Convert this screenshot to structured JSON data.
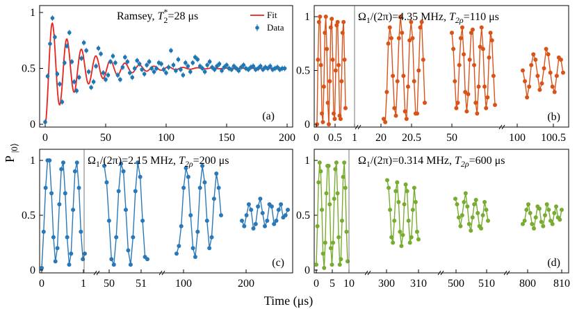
{
  "figure": {
    "ylabel": "P|0⟩",
    "xlabel": "Time (μs)"
  },
  "colors": {
    "ramsey": "#1f77b4",
    "fit": "#e8221a",
    "b": "#d95319",
    "c": "#2a78b8",
    "d": "#77ac30"
  },
  "chart_data": [
    {
      "id": "a",
      "type": "scatter",
      "title_text": "Ramsey, ",
      "title_param": "T",
      "title_sup": "*",
      "title_sub": "2",
      "title_value": "=28 μs",
      "panel_label": "(a)",
      "xlim": [
        0,
        200
      ],
      "ylim": [
        0,
        1
      ],
      "x_ticks": [
        "0",
        "50",
        "100",
        "150",
        "200"
      ],
      "y_ticks": [
        "0",
        "0.5",
        "1"
      ],
      "legend": [
        "Fit",
        "Data"
      ],
      "fit": {
        "T2star_us": 28,
        "period_us": 12,
        "offset": 0.5
      },
      "series": [
        {
          "name": "Data",
          "x": [
            0,
            2,
            4,
            6,
            8,
            10,
            12,
            14,
            16,
            18,
            20,
            22,
            24,
            26,
            28,
            30,
            32,
            34,
            36,
            38,
            40,
            42,
            44,
            46,
            48,
            50,
            52,
            54,
            56,
            58,
            60,
            62,
            64,
            66,
            68,
            70,
            72,
            74,
            76,
            78,
            80,
            82,
            84,
            86,
            88,
            90,
            92,
            94,
            96,
            98,
            100,
            102,
            104,
            106,
            108,
            110,
            112,
            114,
            116,
            118,
            120,
            122,
            124,
            126,
            128,
            130,
            132,
            134,
            136,
            138,
            140,
            142,
            144,
            146,
            148,
            150,
            152,
            154,
            156,
            158,
            160,
            162,
            164,
            166,
            168,
            170,
            172,
            174,
            176,
            178,
            180,
            182,
            184,
            186,
            188,
            190,
            192,
            194,
            196,
            198
          ],
          "y": [
            0.02,
            0.43,
            0.72,
            0.95,
            0.78,
            0.45,
            0.36,
            0.2,
            0.55,
            0.7,
            0.82,
            0.56,
            0.38,
            0.3,
            0.42,
            0.59,
            0.73,
            0.66,
            0.47,
            0.33,
            0.38,
            0.52,
            0.68,
            0.63,
            0.46,
            0.4,
            0.44,
            0.56,
            0.61,
            0.55,
            0.44,
            0.4,
            0.51,
            0.6,
            0.56,
            0.46,
            0.42,
            0.5,
            0.57,
            0.54,
            0.49,
            0.45,
            0.53,
            0.56,
            0.5,
            0.47,
            0.5,
            0.55,
            0.54,
            0.49,
            0.46,
            0.51,
            0.66,
            0.53,
            0.48,
            0.58,
            0.49,
            0.44,
            0.55,
            0.52,
            0.47,
            0.55,
            0.6,
            0.58,
            0.52,
            0.5,
            0.47,
            0.53,
            0.56,
            0.51,
            0.49,
            0.52,
            0.54,
            0.48,
            0.51,
            0.53,
            0.5,
            0.49,
            0.52,
            0.5,
            0.48,
            0.51,
            0.53,
            0.5,
            0.49,
            0.51,
            0.52,
            0.49,
            0.5,
            0.52,
            0.49,
            0.51,
            0.5,
            0.52,
            0.49,
            0.5,
            0.51,
            0.49,
            0.5,
            0.5
          ]
        }
      ]
    },
    {
      "id": "b",
      "type": "line",
      "title_text": "Ω",
      "title_sub1": "1",
      "title_mid": "/(2π)=4.35 MHz, ",
      "title_param": "T",
      "title_sub2": "2ρ",
      "title_value": "=110 μs",
      "panel_label": "(b)",
      "ylim": [
        0,
        1
      ],
      "y_ticks": [
        "0",
        "0.5",
        "1"
      ],
      "x_tick_labels": [
        "0",
        "0.5",
        "1",
        "20",
        "20.5",
        "50",
        "100",
        "100.5"
      ],
      "segments": [
        {
          "values": [
            0.0,
            0.6,
            0.95,
            1.0,
            0.55,
            0.1,
            0.02,
            0.35,
            0.85,
            1.0,
            0.7,
            0.2,
            0.0,
            0.4,
            0.9,
            0.98,
            0.6,
            0.1,
            0.05,
            0.5,
            0.92,
            0.95,
            0.55,
            0.08,
            0.05,
            0.4,
            0.85,
            0.95,
            0.6,
            0.15
          ]
        },
        {
          "values": [
            0.05,
            0.02,
            0.3,
            0.75,
            0.9,
            0.8,
            0.45,
            0.15,
            0.08,
            0.4,
            0.8,
            1.0,
            0.85,
            0.45,
            0.12,
            0.05,
            0.35,
            0.78,
            0.95,
            0.8,
            0.4,
            0.1,
            0.1,
            0.5,
            0.9,
            0.95,
            0.6,
            0.2
          ]
        },
        {
          "values": [
            0.85,
            0.7,
            0.4,
            0.15,
            0.2,
            0.55,
            0.8,
            0.9,
            0.65,
            0.3,
            0.12,
            0.28,
            0.6,
            0.85,
            0.88,
            0.55,
            0.2,
            0.1,
            0.35,
            0.72,
            0.9,
            0.7,
            0.35,
            0.15,
            0.25,
            0.62,
            0.85,
            0.78,
            0.45,
            0.18
          ]
        },
        {
          "values": [
            0.5,
            0.4,
            0.25,
            0.35,
            0.55,
            0.65,
            0.6,
            0.45,
            0.32,
            0.38,
            0.52,
            0.7,
            0.65,
            0.48,
            0.35,
            0.3,
            0.45,
            0.62,
            0.6,
            0.48
          ]
        }
      ]
    },
    {
      "id": "c",
      "type": "line",
      "title_text": "Ω",
      "title_sub1": "1",
      "title_mid": "/(2π)=2.15 MHz, ",
      "title_param": "T",
      "title_sub2": "2ρ",
      "title_value": "=200 μs",
      "panel_label": "(c)",
      "ylim": [
        0,
        1
      ],
      "y_ticks": [
        "0",
        "0.5",
        "1"
      ],
      "x_tick_labels": [
        "0",
        "1",
        "50",
        "51",
        "100",
        "200"
      ],
      "segments": [
        {
          "values": [
            0.02,
            0.35,
            0.75,
            1.0,
            1.0,
            0.7,
            0.3,
            0.08,
            0.2,
            0.6,
            0.92,
            0.98,
            0.7,
            0.3,
            0.05,
            0.15,
            0.55,
            0.9,
            0.98,
            0.75,
            0.35,
            0.1,
            0.15
          ]
        },
        {
          "values": [
            0.95,
            0.8,
            0.45,
            0.1,
            0.05,
            0.3,
            0.72,
            0.97,
            0.9,
            0.55,
            0.18,
            0.05,
            0.3,
            0.72,
            0.98,
            0.85,
            0.45,
            0.12,
            0.1
          ]
        },
        {
          "values": [
            0.15,
            0.22,
            0.4,
            0.75,
            0.93,
            0.85,
            0.5,
            0.2,
            0.12,
            0.35,
            0.75,
            0.95,
            0.8,
            0.45,
            0.2,
            0.3,
            0.65,
            0.88,
            0.75,
            0.5
          ]
        },
        {
          "values": [
            0.45,
            0.4,
            0.5,
            0.6,
            0.55,
            0.38,
            0.42,
            0.58,
            0.65,
            0.52,
            0.4,
            0.45,
            0.6,
            0.58,
            0.42,
            0.45,
            0.55,
            0.6,
            0.48,
            0.5,
            0.55
          ]
        }
      ]
    },
    {
      "id": "d",
      "type": "line",
      "title_text": "Ω",
      "title_sub1": "1",
      "title_mid": "/(2π)=0.314 MHz, ",
      "title_param": "T",
      "title_sub2": "2ρ",
      "title_value": "=600 μs",
      "panel_label": "(d)",
      "ylim": [
        0,
        1
      ],
      "y_ticks": [
        "0",
        "0.5",
        "1"
      ],
      "x_tick_labels": [
        "0",
        "5",
        "10",
        "300",
        "310",
        "500",
        "510",
        "800",
        "810"
      ],
      "segments": [
        {
          "values": [
            0.05,
            0.4,
            0.8,
            0.98,
            0.9,
            0.55,
            0.15,
            0.02,
            0.25,
            0.7,
            0.95,
            0.95,
            0.6,
            0.2,
            0.05,
            0.25,
            0.65,
            0.92,
            0.98,
            0.7,
            0.3,
            0.05,
            0.1,
            0.45,
            0.85,
            0.98,
            0.75,
            0.35,
            0.08
          ]
        },
        {
          "values": [
            0.82,
            0.75,
            0.55,
            0.3,
            0.25,
            0.45,
            0.72,
            0.8,
            0.62,
            0.35,
            0.22,
            0.32,
            0.6,
            0.78,
            0.72,
            0.45,
            0.25,
            0.3,
            0.55,
            0.75,
            0.62,
            0.35,
            0.28
          ]
        },
        {
          "values": [
            0.65,
            0.6,
            0.48,
            0.4,
            0.5,
            0.62,
            0.7,
            0.58,
            0.42,
            0.36,
            0.48,
            0.6,
            0.64,
            0.52,
            0.4,
            0.38,
            0.5,
            0.62,
            0.55,
            0.45
          ]
        },
        {
          "values": [
            0.42,
            0.45,
            0.55,
            0.6,
            0.52,
            0.42,
            0.38,
            0.48,
            0.58,
            0.56,
            0.44,
            0.4,
            0.5,
            0.6,
            0.55,
            0.45,
            0.42,
            0.52,
            0.58,
            0.48,
            0.46,
            0.55
          ]
        }
      ]
    }
  ]
}
